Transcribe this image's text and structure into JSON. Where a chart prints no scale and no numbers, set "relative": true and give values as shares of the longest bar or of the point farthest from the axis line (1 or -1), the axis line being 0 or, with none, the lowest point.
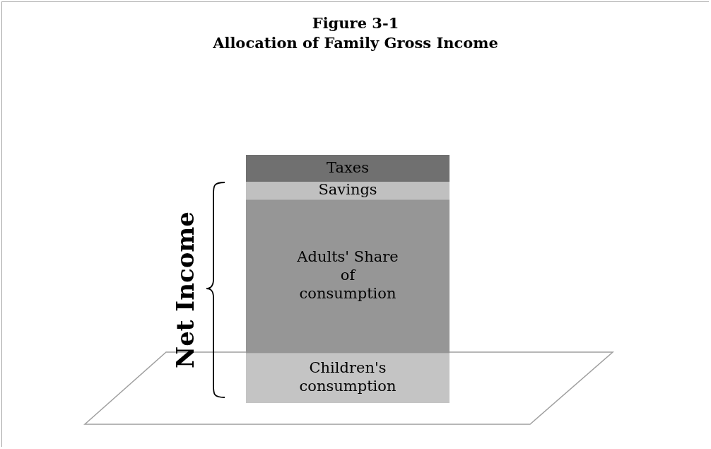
{
  "chart_data": {
    "type": "bar",
    "title": "Figure 3-1",
    "subtitle": "Allocation of Family Gross Income",
    "relative": true,
    "stacked": true,
    "categories": [
      null
    ],
    "series": [
      {
        "name": "Children's consumption",
        "color": "#c4c4c4",
        "values": [
          0.2
        ]
      },
      {
        "name": "Adults' Share of consumption",
        "color": "#969696",
        "values": [
          0.62
        ]
      },
      {
        "name": "Savings",
        "color": "#c0c0c0",
        "values": [
          0.07
        ]
      },
      {
        "name": "Taxes",
        "color": "#707070",
        "values": [
          0.11
        ]
      }
    ],
    "annotations": [
      "Net Income"
    ],
    "legend": false
  }
}
